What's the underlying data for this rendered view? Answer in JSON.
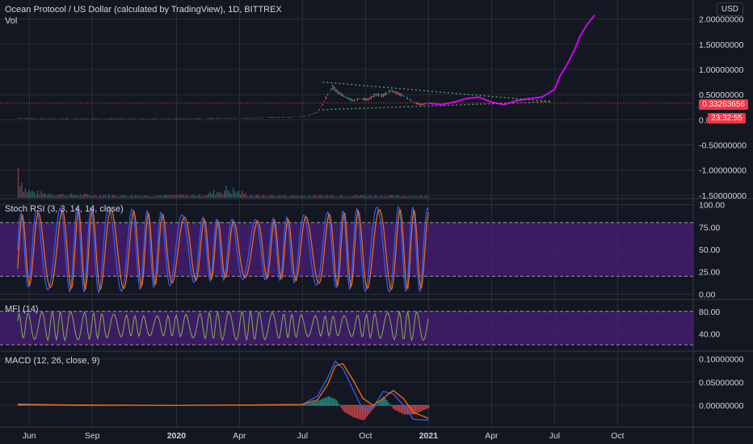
{
  "header": {
    "title": "Ocean Protocol / US Dollar (calculated by TradingView), 1D, BITTREX",
    "vol_label": "Vol",
    "currency": "USD"
  },
  "price_tags": {
    "last_price": "0.33263656",
    "countdown": "23:32:55"
  },
  "colors": {
    "background": "#131722",
    "grid": "#2a2e39",
    "up": "#26a69a",
    "down": "#ef5350",
    "projection": "#d500f9",
    "trendline": "#4caf50",
    "band_fill": "#4a1f7a",
    "stoch_k": "#2962ff",
    "stoch_d": "#ff6d00",
    "mfi": "#7cb342",
    "macd": "#2962ff",
    "signal": "#ff6d00",
    "price_tag": "#f23645"
  },
  "chart_data": [
    {
      "type": "line",
      "name": "price",
      "title": "Ocean Protocol / US Dollar (calculated by TradingView), 1D, BITTREX",
      "y_ticks": [
        "2.00000000",
        "1.50000000",
        "1.00000000",
        "0.50000000",
        "0.00000000",
        "-0.50000000",
        "-1.00000000",
        "-1.50000000"
      ],
      "y_tick_values": [
        2.0,
        1.5,
        1.0,
        0.5,
        0.0,
        -0.5,
        -1.0,
        -1.5
      ],
      "ylim": [
        -1.55,
        2.25
      ],
      "x_ticks": [
        "Jun",
        "Sep",
        "2020",
        "Apr",
        "Jul",
        "Oct",
        "2021",
        "Apr",
        "Jul",
        "Oct"
      ],
      "x_tick_values": [
        2019.416,
        2019.666,
        2020.0,
        2020.25,
        2020.5,
        2020.75,
        2021.0,
        2021.25,
        2021.5,
        2021.75
      ],
      "xlim": [
        2019.3,
        2022.05
      ],
      "last_price": 0.33263656,
      "series": [
        {
          "x": [
            2019.37,
            2019.45,
            2019.55,
            2019.65,
            2019.75,
            2019.85,
            2019.95,
            2020.05,
            2020.15,
            2020.25,
            2020.35,
            2020.45,
            2020.52,
            2020.56,
            2020.58,
            2020.6,
            2020.62,
            2020.64,
            2020.67,
            2020.7,
            2020.73,
            2020.76,
            2020.79,
            2020.82,
            2020.85,
            2020.88,
            2020.91,
            2020.94,
            2020.97,
            2021.0
          ],
          "values": [
            0.03,
            0.02,
            0.02,
            0.02,
            0.02,
            0.02,
            0.02,
            0.02,
            0.03,
            0.03,
            0.04,
            0.05,
            0.08,
            0.15,
            0.3,
            0.5,
            0.65,
            0.55,
            0.45,
            0.38,
            0.42,
            0.4,
            0.5,
            0.48,
            0.58,
            0.52,
            0.45,
            0.35,
            0.3,
            0.33
          ]
        },
        {
          "name": "",
          "x": [
            2021.0,
            2021.05,
            2021.1,
            2021.15,
            2021.2,
            2021.25,
            2021.3,
            2021.35,
            2021.4,
            2021.45,
            2021.5,
            2021.52,
            2021.55,
            2021.58,
            2021.6,
            2021.63,
            2021.66
          ],
          "values": [
            0.33,
            0.3,
            0.35,
            0.42,
            0.45,
            0.35,
            0.3,
            0.38,
            0.42,
            0.45,
            0.6,
            0.85,
            1.1,
            1.4,
            1.65,
            1.9,
            2.08
          ]
        }
      ],
      "trendlines": [
        {
          "x": [
            2020.58,
            2021.49
          ],
          "values": [
            0.75,
            0.36
          ]
        },
        {
          "x": [
            2020.58,
            2021.49
          ],
          "values": [
            0.2,
            0.36
          ]
        }
      ],
      "volume": {
        "x": [
          2019.37,
          2019.38,
          2019.4,
          2019.45,
          2019.55,
          2019.7,
          2019.9,
          2020.1,
          2020.2,
          2020.3,
          2020.5,
          2020.7,
          2020.9,
          2021.0
        ],
        "values": [
          1.0,
          0.6,
          0.25,
          0.15,
          0.1,
          0.08,
          0.07,
          0.08,
          0.28,
          0.07,
          0.06,
          0.07,
          0.06,
          0.05
        ]
      }
    },
    {
      "type": "line",
      "name": "stoch_rsi",
      "title": "Stoch RSI (3, 3, 14, 14, close)",
      "y_ticks": [
        "100.00",
        "75.00",
        "50.00",
        "25.00",
        "0.00"
      ],
      "y_tick_values": [
        100,
        75,
        50,
        25,
        0
      ],
      "ylim": [
        -5,
        105
      ],
      "band": [
        20,
        80
      ]
    },
    {
      "type": "line",
      "name": "mfi",
      "title": "MFI (14)",
      "y_ticks": [
        "80.00",
        "40.00"
      ],
      "y_tick_values": [
        80,
        40
      ],
      "ylim": [
        10,
        100
      ],
      "band": [
        20,
        80
      ]
    },
    {
      "type": "line",
      "name": "macd",
      "title": "MACD (12, 26, close, 9)",
      "y_ticks": [
        "0.10000000",
        "0.05000000",
        "0.00000000"
      ],
      "y_tick_values": [
        0.1,
        0.05,
        0.0
      ],
      "ylim": [
        -0.045,
        0.115
      ],
      "macd": {
        "x": [
          2019.37,
          2019.6,
          2020.0,
          2020.3,
          2020.5,
          2020.56,
          2020.6,
          2020.63,
          2020.66,
          2020.7,
          2020.74,
          2020.78,
          2020.82,
          2020.86,
          2020.9,
          2020.94,
          2021.0
        ],
        "values": [
          0.003,
          0.0,
          0.0,
          0.001,
          0.002,
          0.02,
          0.06,
          0.095,
          0.08,
          0.035,
          -0.01,
          -0.005,
          0.03,
          0.025,
          0.0,
          -0.03,
          -0.032
        ]
      },
      "signal": {
        "x": [
          2019.37,
          2019.6,
          2020.0,
          2020.3,
          2020.5,
          2020.56,
          2020.6,
          2020.63,
          2020.66,
          2020.7,
          2020.74,
          2020.78,
          2020.82,
          2020.86,
          2020.9,
          2020.94,
          2021.0
        ],
        "values": [
          0.002,
          0.001,
          0.0,
          0.001,
          0.002,
          0.012,
          0.045,
          0.085,
          0.09,
          0.055,
          0.015,
          0.0,
          0.015,
          0.032,
          0.015,
          -0.015,
          -0.028
        ]
      }
    }
  ]
}
